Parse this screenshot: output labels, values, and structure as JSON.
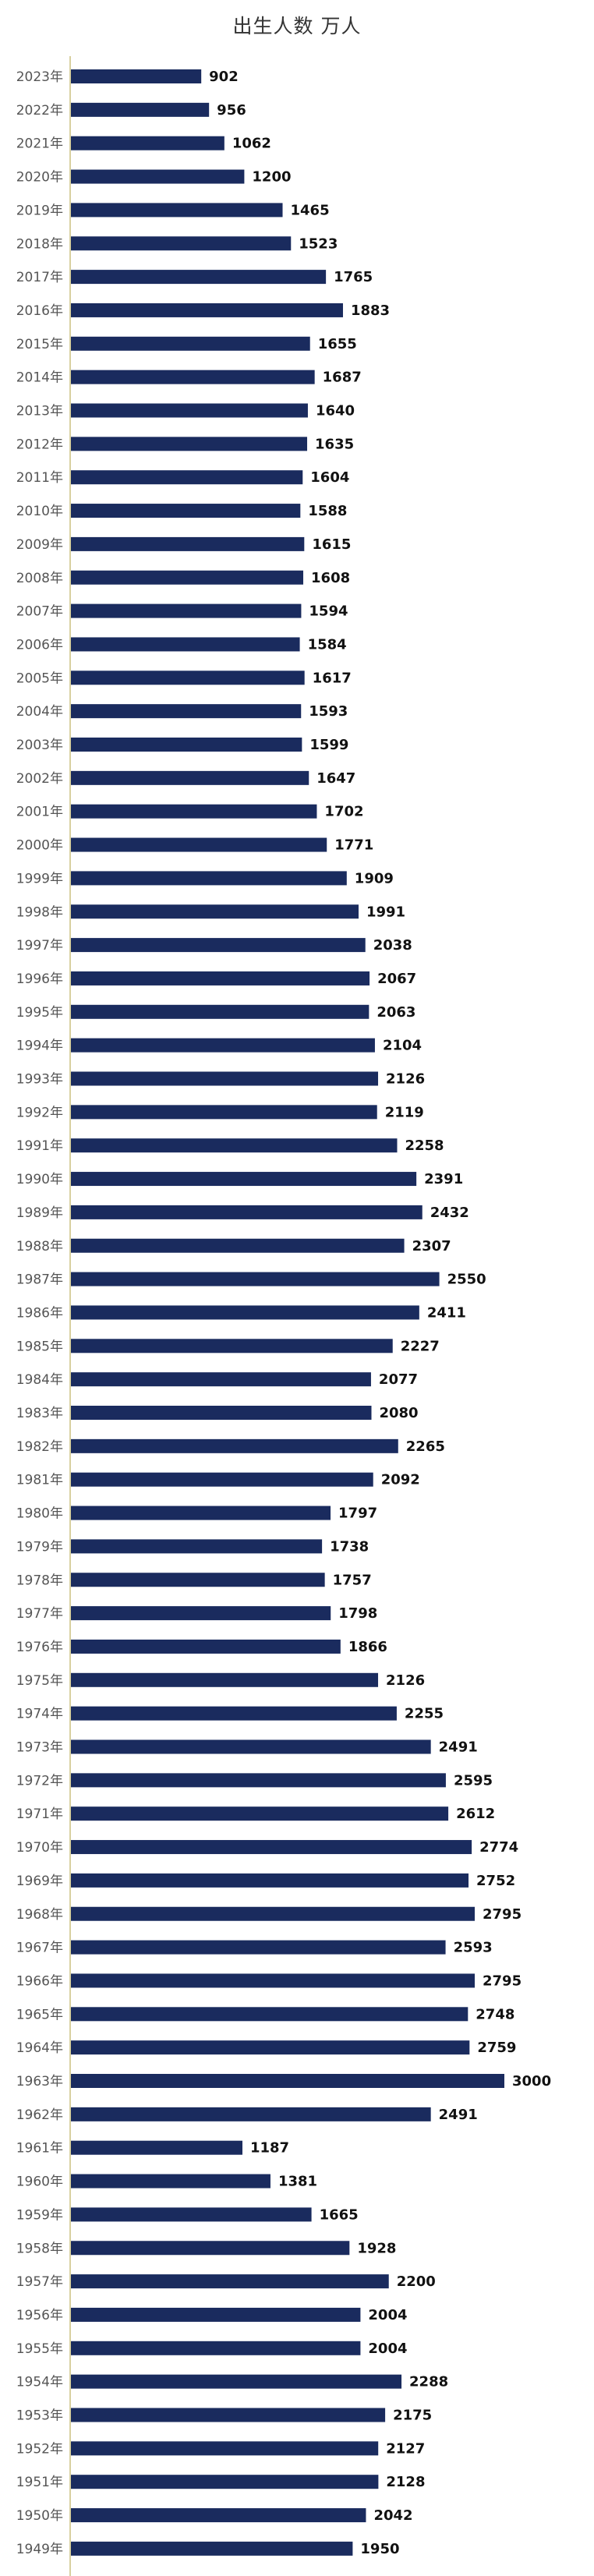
{
  "chart_data": {
    "type": "bar",
    "orientation": "horizontal",
    "title": "出生人数 万人",
    "xlabel": "",
    "ylabel": "",
    "bar_color": "#1a2b5e",
    "axis_color": "#d8d0a0",
    "xlim": [
      0,
      3000
    ],
    "grid": false,
    "legend": "none",
    "categories": [
      "2023年",
      "2022年",
      "2021年",
      "2020年",
      "2019年",
      "2018年",
      "2017年",
      "2016年",
      "2015年",
      "2014年",
      "2013年",
      "2012年",
      "2011年",
      "2010年",
      "2009年",
      "2008年",
      "2007年",
      "2006年",
      "2005年",
      "2004年",
      "2003年",
      "2002年",
      "2001年",
      "2000年",
      "1999年",
      "1998年",
      "1997年",
      "1996年",
      "1995年",
      "1994年",
      "1993年",
      "1992年",
      "1991年",
      "1990年",
      "1989年",
      "1988年",
      "1987年",
      "1986年",
      "1985年",
      "1984年",
      "1983年",
      "1982年",
      "1981年",
      "1980年",
      "1979年",
      "1978年",
      "1977年",
      "1976年",
      "1975年",
      "1974年",
      "1973年",
      "1972年",
      "1971年",
      "1970年",
      "1969年",
      "1968年",
      "1967年",
      "1966年",
      "1965年",
      "1964年",
      "1963年",
      "1962年",
      "1961年",
      "1960年",
      "1959年",
      "1958年",
      "1957年",
      "1956年",
      "1955年",
      "1954年",
      "1953年",
      "1952年",
      "1951年",
      "1950年",
      "1949年"
    ],
    "values": [
      902,
      956,
      1062,
      1200,
      1465,
      1523,
      1765,
      1883,
      1655,
      1687,
      1640,
      1635,
      1604,
      1588,
      1615,
      1608,
      1594,
      1584,
      1617,
      1593,
      1599,
      1647,
      1702,
      1771,
      1909,
      1991,
      2038,
      2067,
      2063,
      2104,
      2126,
      2119,
      2258,
      2391,
      2432,
      2307,
      2550,
      2411,
      2227,
      2077,
      2080,
      2265,
      2092,
      1797,
      1738,
      1757,
      1798,
      1866,
      2126,
      2255,
      2491,
      2595,
      2612,
      2774,
      2752,
      2795,
      2593,
      2795,
      2748,
      2759,
      3000,
      2491,
      1187,
      1381,
      1665,
      1928,
      2200,
      2004,
      2004,
      2288,
      2175,
      2127,
      2128,
      2042,
      1950
    ]
  }
}
